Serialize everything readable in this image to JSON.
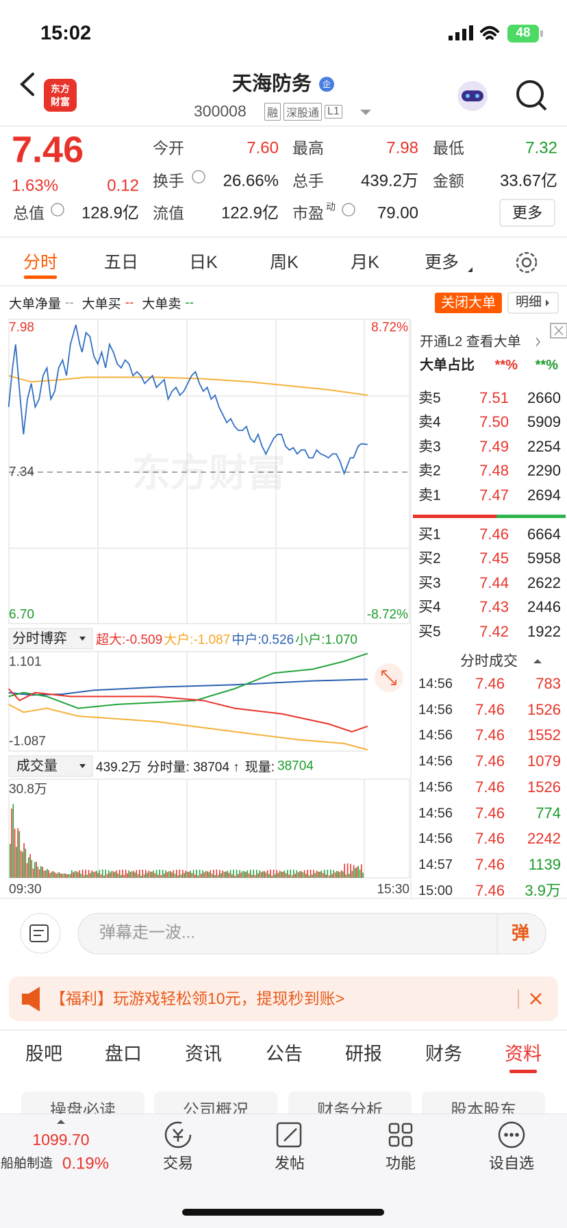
{
  "status_bar": {
    "time": "15:02",
    "battery": "48"
  },
  "header": {
    "logo": [
      "东方",
      "财富"
    ],
    "title": "天海防务",
    "badge": "企",
    "code": "300008",
    "tags": [
      "融",
      "深股通",
      "L1"
    ]
  },
  "quote": {
    "price": "7.46",
    "change_pct": "1.63%",
    "change": "0.12",
    "more": "更多",
    "fields": [
      {
        "label": "今开",
        "value": "7.60",
        "color": "#e8332a"
      },
      {
        "label": "最高",
        "value": "7.98",
        "color": "#e8332a"
      },
      {
        "label": "最低",
        "value": "7.32",
        "color": "#1a9b2a"
      },
      {
        "label": "换手",
        "value": "26.66%"
      },
      {
        "label": "总手",
        "value": "439.2万"
      },
      {
        "label": "金额",
        "value": "33.67亿"
      },
      {
        "label": "总值",
        "value": "128.9亿"
      },
      {
        "label": "流值",
        "value": "122.9亿"
      },
      {
        "label": "市盈",
        "sup": "动",
        "value": "79.00"
      }
    ]
  },
  "chart_tabs": {
    "items": [
      "分时",
      "五日",
      "日K",
      "周K",
      "月K",
      "更多"
    ],
    "active": 0
  },
  "intraday": {
    "legend": [
      {
        "name": "大单净量",
        "value": "--",
        "color": "#999999"
      },
      {
        "name": "大单买",
        "value": "--",
        "color": "#e8332a"
      },
      {
        "name": "大单卖",
        "value": "--",
        "color": "#1a9b2a"
      }
    ],
    "buttons": [
      "关闭大单",
      "明细"
    ],
    "price_labels": {
      "high": "7.98",
      "high_pct": "8.72%",
      "prev_close": "7.34",
      "low": "6.70",
      "low_pct": "-8.72%"
    },
    "watermark": "东方财富"
  },
  "game": {
    "label": "分时博弈",
    "items": [
      {
        "text": "超大:-0.509",
        "color": "#e8332a"
      },
      {
        "text": "大户:-1.087",
        "color": "#f5a623"
      },
      {
        "text": "中户:0.526",
        "color": "#2a5fb0"
      },
      {
        "text": "小户:1.070",
        "color": "#1a9b2a"
      }
    ],
    "max": "1.101",
    "min": "-1.087"
  },
  "volume": {
    "label": "成交量",
    "total": "439.2万",
    "minute": "分时量: 38704 ↑",
    "current_label": "现量:",
    "current": "38704",
    "max": "30.8万",
    "start": "09:30",
    "end": "15:30"
  },
  "order_panel": {
    "l2": "开通L2 查看大单",
    "ratio_label": "大单占比",
    "ratio_buy": "**%",
    "ratio_sell": "**%",
    "asks": [
      [
        "卖5",
        "7.51",
        "2660"
      ],
      [
        "卖4",
        "7.50",
        "5909"
      ],
      [
        "卖3",
        "7.49",
        "2254"
      ],
      [
        "卖2",
        "7.48",
        "2290"
      ],
      [
        "卖1",
        "7.47",
        "2694"
      ]
    ],
    "bids": [
      [
        "买1",
        "7.46",
        "6664"
      ],
      [
        "买2",
        "7.45",
        "5958"
      ],
      [
        "买3",
        "7.44",
        "2622"
      ],
      [
        "买4",
        "7.43",
        "2446"
      ],
      [
        "买5",
        "7.42",
        "1922"
      ]
    ],
    "trades_title": "分时成交",
    "trades": [
      {
        "time": "14:56",
        "price": "7.46",
        "volume": "783",
        "color": "#e8332a"
      },
      {
        "time": "14:56",
        "price": "7.46",
        "volume": "1526",
        "color": "#e8332a"
      },
      {
        "time": "14:56",
        "price": "7.46",
        "volume": "1552",
        "color": "#e8332a"
      },
      {
        "time": "14:56",
        "price": "7.46",
        "volume": "1079",
        "color": "#e8332a"
      },
      {
        "time": "14:56",
        "price": "7.46",
        "volume": "1526",
        "color": "#e8332a"
      },
      {
        "time": "14:56",
        "price": "7.46",
        "volume": "774",
        "color": "#1a9b2a"
      },
      {
        "time": "14:56",
        "price": "7.46",
        "volume": "2242",
        "color": "#e8332a"
      },
      {
        "time": "14:57",
        "price": "7.46",
        "volume": "1139",
        "color": "#1a9b2a"
      },
      {
        "time": "15:00",
        "price": "7.46",
        "volume": "3.9万",
        "color": "#1a9b2a"
      }
    ]
  },
  "comment": {
    "placeholder": "弹幕走一波...",
    "button": "弹"
  },
  "banner": {
    "text": "【福利】玩游戏轻松领10元，提现秒到账>"
  },
  "info_tabs": {
    "items": [
      "股吧",
      "盘口",
      "资讯",
      "公告",
      "研报",
      "财务",
      "资料"
    ],
    "active": 6
  },
  "sub_tabs": [
    "操盘必读",
    "公司概况",
    "财务分析",
    "股本股东"
  ],
  "bottom_nav": {
    "index_value": "1099.70",
    "index_name": "船舶制造",
    "index_change": "0.19%",
    "items": [
      "交易",
      "发帖",
      "功能",
      "设自选"
    ]
  }
}
